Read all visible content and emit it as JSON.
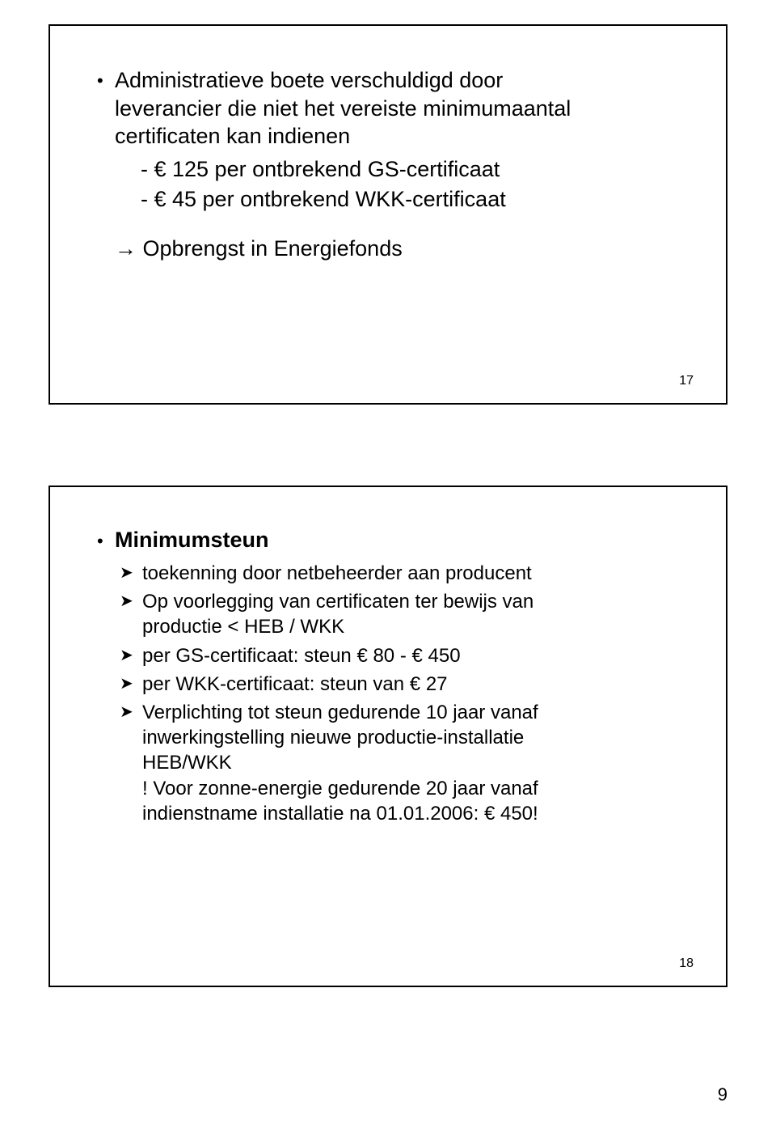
{
  "slide17": {
    "bullet1_line1": "Administratieve boete verschuldigd door",
    "bullet1_line2": "leverancier die niet het vereiste minimumaantal",
    "bullet1_line3": "certificaten kan indienen",
    "sub1": "- € 125 per ontbrekend GS-certificaat",
    "sub2": "- € 45 per ontbrekend WKK-certificaat",
    "arrow": "→ Opbrengst in Energiefonds",
    "num": "17"
  },
  "slide18": {
    "heading": "Minimumsteun",
    "b1": "toekenning door netbeheerder aan producent",
    "b2_l1": "Op voorlegging van certificaten ter bewijs van",
    "b2_l2": "productie < HEB / WKK",
    "b3": "per GS-certificaat: steun € 80 - € 450",
    "b4": "per WKK-certificaat: steun van € 27",
    "b5_l1": "Verplichting tot steun gedurende 10 jaar vanaf",
    "b5_l2": "inwerkingstelling nieuwe productie-installatie",
    "b5_l3": "HEB/WKK",
    "b5_l4": "! Voor zonne-energie gedurende 20 jaar vanaf",
    "b5_l5": "indienstname installatie na 01.01.2006: € 450!",
    "num": "18"
  },
  "pageNum": "9"
}
